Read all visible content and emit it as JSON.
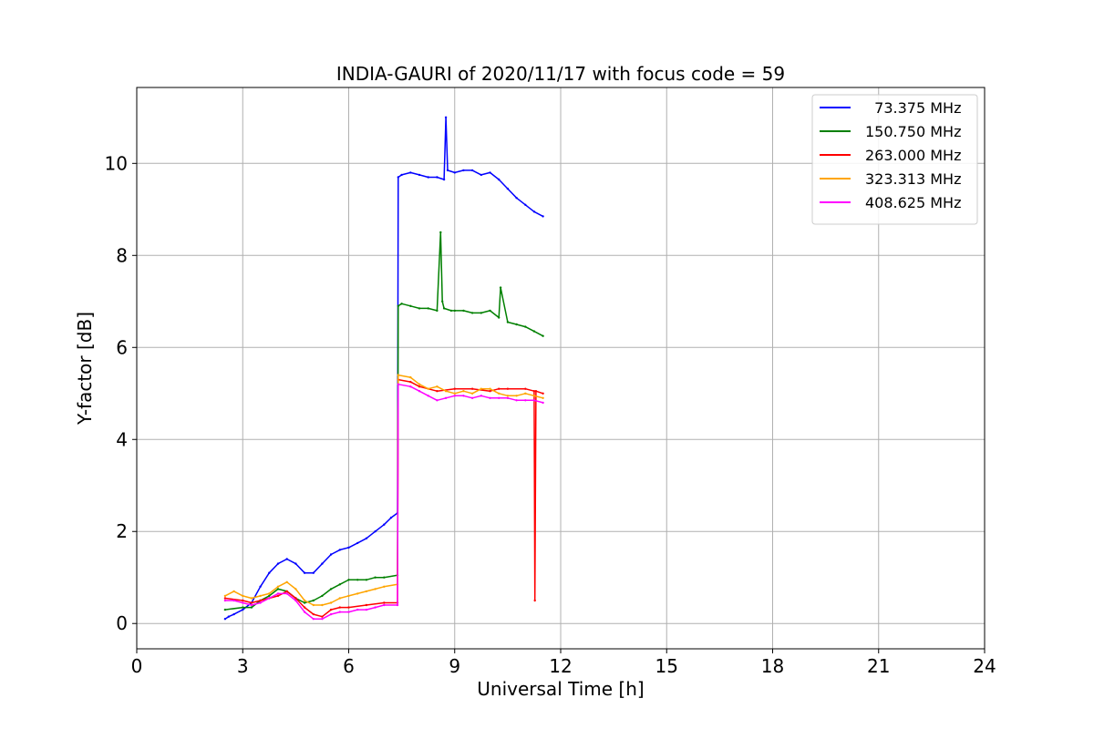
{
  "chart_data": {
    "type": "line",
    "title": "INDIA-GAURI of 2020/11/17 with focus code = 59",
    "xlabel": "Universal Time [h]",
    "ylabel": "Y-factor [dB]",
    "xlim": [
      0,
      24
    ],
    "ylim": [
      -0.55,
      11.65
    ],
    "xticks": [
      0,
      3,
      6,
      9,
      12,
      15,
      18,
      21,
      24
    ],
    "yticks": [
      0,
      2,
      4,
      6,
      8,
      10
    ],
    "grid": true,
    "legend_position": "top-right",
    "series": [
      {
        "name": "  73.375 MHz",
        "color": "#0000ff",
        "x": [
          2.5,
          2.6,
          2.75,
          3.0,
          3.25,
          3.5,
          3.75,
          4.0,
          4.25,
          4.5,
          4.75,
          5.0,
          5.25,
          5.5,
          5.75,
          6.0,
          6.25,
          6.5,
          6.75,
          7.0,
          7.2,
          7.38,
          7.4,
          7.5,
          7.75,
          8.0,
          8.25,
          8.5,
          8.7,
          8.75,
          8.8,
          9.0,
          9.25,
          9.5,
          9.75,
          10.0,
          10.25,
          10.5,
          10.75,
          11.0,
          11.25,
          11.5
        ],
        "y": [
          0.1,
          0.15,
          0.2,
          0.3,
          0.45,
          0.8,
          1.1,
          1.3,
          1.4,
          1.3,
          1.1,
          1.1,
          1.3,
          1.5,
          1.6,
          1.65,
          1.75,
          1.85,
          2.0,
          2.15,
          2.3,
          2.4,
          9.7,
          9.75,
          9.8,
          9.75,
          9.7,
          9.7,
          9.65,
          11.0,
          9.85,
          9.8,
          9.85,
          9.85,
          9.75,
          9.8,
          9.65,
          9.45,
          9.25,
          9.1,
          8.95,
          8.85
        ]
      },
      {
        "name": "150.750 MHz",
        "color": "#008000",
        "x": [
          2.5,
          3.0,
          3.25,
          3.5,
          3.75,
          4.0,
          4.25,
          4.5,
          4.75,
          5.0,
          5.25,
          5.5,
          5.75,
          6.0,
          6.25,
          6.5,
          6.75,
          7.0,
          7.38,
          7.4,
          7.5,
          7.75,
          8.0,
          8.25,
          8.5,
          8.6,
          8.65,
          8.7,
          8.9,
          9.0,
          9.25,
          9.5,
          9.75,
          10.0,
          10.25,
          10.3,
          10.5,
          10.75,
          11.0,
          11.25,
          11.5
        ],
        "y": [
          0.3,
          0.35,
          0.35,
          0.5,
          0.6,
          0.75,
          0.7,
          0.55,
          0.45,
          0.5,
          0.6,
          0.75,
          0.85,
          0.95,
          0.95,
          0.95,
          1.0,
          1.0,
          1.05,
          6.9,
          6.95,
          6.9,
          6.85,
          6.85,
          6.8,
          8.5,
          7.0,
          6.85,
          6.8,
          6.8,
          6.8,
          6.75,
          6.75,
          6.8,
          6.65,
          7.3,
          6.55,
          6.5,
          6.45,
          6.35,
          6.25
        ]
      },
      {
        "name": "263.000 MHz",
        "color": "#ff0000",
        "x": [
          2.5,
          3.0,
          3.25,
          3.5,
          3.75,
          4.0,
          4.25,
          4.5,
          4.75,
          5.0,
          5.25,
          5.5,
          5.75,
          6.0,
          6.5,
          7.0,
          7.38,
          7.4,
          7.75,
          8.0,
          8.5,
          9.0,
          9.5,
          10.0,
          10.25,
          10.5,
          11.0,
          11.25,
          11.27,
          11.3,
          11.5
        ],
        "y": [
          0.55,
          0.5,
          0.45,
          0.5,
          0.55,
          0.6,
          0.7,
          0.55,
          0.35,
          0.2,
          0.15,
          0.3,
          0.35,
          0.35,
          0.4,
          0.45,
          0.45,
          5.3,
          5.25,
          5.15,
          5.05,
          5.1,
          5.1,
          5.05,
          5.1,
          5.1,
          5.1,
          5.05,
          0.5,
          5.05,
          5.0
        ]
      },
      {
        "name": "323.313 MHz",
        "color": "#ffa500",
        "x": [
          2.5,
          2.75,
          3.0,
          3.25,
          3.5,
          3.75,
          4.0,
          4.25,
          4.5,
          4.75,
          5.0,
          5.25,
          5.5,
          5.75,
          6.0,
          6.25,
          6.5,
          6.75,
          7.0,
          7.38,
          7.4,
          7.75,
          8.0,
          8.25,
          8.5,
          8.75,
          9.0,
          9.25,
          9.5,
          9.75,
          10.0,
          10.25,
          10.5,
          10.75,
          11.0,
          11.25,
          11.5
        ],
        "y": [
          0.6,
          0.7,
          0.6,
          0.55,
          0.6,
          0.65,
          0.8,
          0.9,
          0.75,
          0.5,
          0.4,
          0.4,
          0.45,
          0.55,
          0.6,
          0.65,
          0.7,
          0.75,
          0.8,
          0.85,
          5.4,
          5.35,
          5.2,
          5.1,
          5.15,
          5.05,
          5.0,
          5.05,
          5.0,
          5.1,
          5.1,
          5.0,
          4.95,
          4.95,
          5.0,
          4.95,
          4.9
        ]
      },
      {
        "name": "408.625 MHz",
        "color": "#ff00ff",
        "x": [
          2.5,
          2.75,
          3.0,
          3.25,
          3.5,
          3.75,
          4.0,
          4.25,
          4.5,
          4.75,
          5.0,
          5.25,
          5.5,
          5.75,
          6.0,
          6.25,
          6.5,
          6.75,
          7.0,
          7.38,
          7.4,
          7.75,
          8.0,
          8.25,
          8.5,
          8.75,
          9.0,
          9.25,
          9.5,
          9.75,
          10.0,
          10.25,
          10.5,
          10.75,
          11.0,
          11.25,
          11.5
        ],
        "y": [
          0.5,
          0.5,
          0.45,
          0.4,
          0.45,
          0.55,
          0.65,
          0.65,
          0.5,
          0.25,
          0.1,
          0.1,
          0.2,
          0.25,
          0.25,
          0.3,
          0.3,
          0.35,
          0.4,
          0.4,
          5.2,
          5.15,
          5.05,
          4.95,
          4.85,
          4.9,
          4.95,
          4.95,
          4.9,
          4.95,
          4.9,
          4.9,
          4.9,
          4.85,
          4.85,
          4.85,
          4.8
        ]
      }
    ]
  }
}
